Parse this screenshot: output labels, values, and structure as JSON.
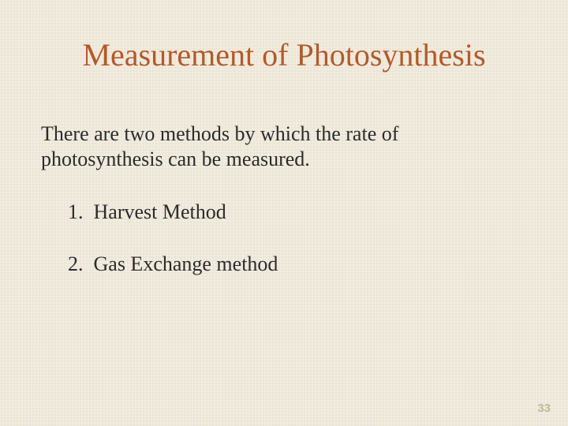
{
  "colors": {
    "background": "#efe9db",
    "title": "#b25a2a",
    "body_text": "#2b2b2b",
    "page_number": "#9c8f76"
  },
  "typography": {
    "title_fontsize_pt": 30,
    "body_fontsize_pt": 20,
    "font_family": "Times New Roman"
  },
  "title": "Measurement of Photosynthesis",
  "intro": "There are two methods by which the rate of photosynthesis can be measured.",
  "methods": [
    {
      "num": "1.",
      "label": "Harvest Method"
    },
    {
      "num": "2.",
      "label": "Gas Exchange method"
    }
  ],
  "page_number": "33"
}
